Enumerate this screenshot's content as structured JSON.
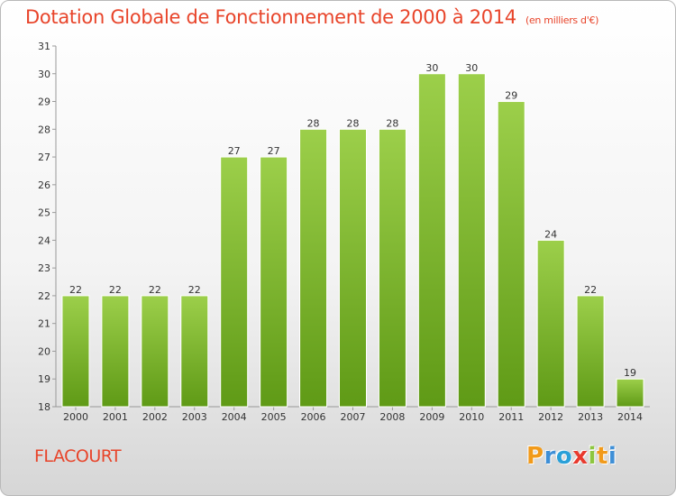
{
  "title": "Dotation Globale de Fonctionnement de 2000 à 2014",
  "unit": "(en milliers d'€)",
  "town": "FLACOURT",
  "logo": "Proxiti",
  "chart_data": {
    "type": "bar",
    "title": "Dotation Globale de Fonctionnement de 2000 à 2014",
    "subtitle": "(en milliers d'€)",
    "categories": [
      "2000",
      "2001",
      "2002",
      "2003",
      "2004",
      "2005",
      "2006",
      "2007",
      "2008",
      "2009",
      "2010",
      "2011",
      "2012",
      "2013",
      "2014"
    ],
    "values": [
      22,
      22,
      22,
      22,
      27,
      27,
      28,
      28,
      28,
      30,
      30,
      29,
      24,
      22,
      19
    ],
    "ylim": [
      18,
      31
    ],
    "yticks": [
      18,
      19,
      20,
      21,
      22,
      23,
      24,
      25,
      26,
      27,
      28,
      29,
      30,
      31
    ],
    "grid": false,
    "bar_color_top": "#9ccf4a",
    "bar_color_bottom": "#5f9a16",
    "xlabel": "",
    "ylabel": ""
  }
}
